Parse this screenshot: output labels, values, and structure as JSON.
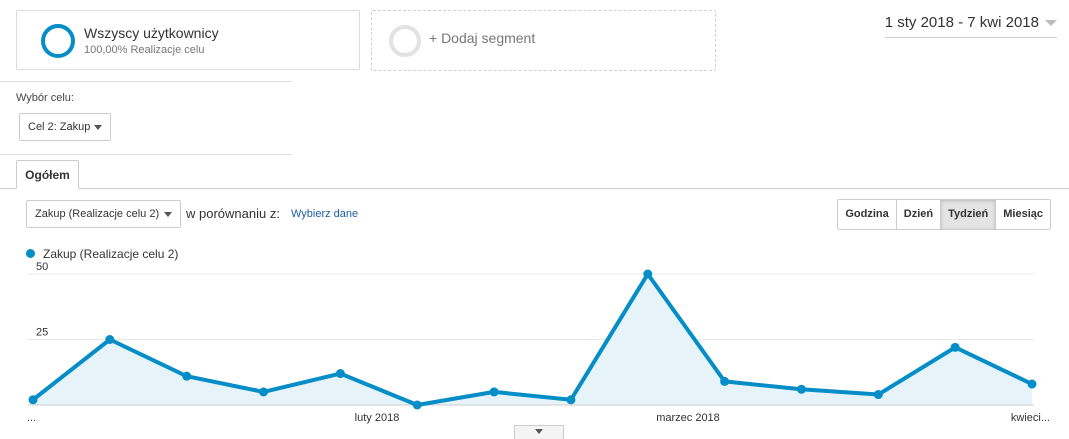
{
  "segments": {
    "active": {
      "title": "Wszyscy użytkownicy",
      "subtitle": "100,00% Realizacje celu"
    },
    "add_label": "+ Dodaj segment"
  },
  "date_range": "1 sty 2018 - 7 kwi 2018",
  "goal_selector": {
    "label": "Wybór celu:",
    "value": "Cel 2: Zakup"
  },
  "tabs": [
    {
      "label": "Ogółem",
      "active": true
    }
  ],
  "metric_selector": {
    "value": "Zakup (Realizacje celu 2)"
  },
  "compare": {
    "label": "w porównaniu z:",
    "link": "Wybierz dane"
  },
  "granularity": {
    "options": [
      "Godzina",
      "Dzień",
      "Tydzień",
      "Miesiąc"
    ],
    "selected": "Tydzień"
  },
  "colors": {
    "accent": "#058dc7",
    "fill": "#e6f3f9",
    "link": "#1a5fa8"
  },
  "chart_data": {
    "type": "area",
    "series": [
      {
        "name": "Zakup (Realizacje celu 2)",
        "values": [
          2,
          25,
          11,
          5,
          12,
          0,
          5,
          2,
          50,
          9,
          6,
          4,
          22,
          8
        ]
      }
    ],
    "x_tick_labels": [
      "...",
      "luty 2018",
      "marzec 2018",
      "kwieci..."
    ],
    "y_ticks": [
      25,
      50
    ],
    "ylim": [
      0,
      50
    ],
    "grid": true,
    "legend_position": "top-left"
  }
}
